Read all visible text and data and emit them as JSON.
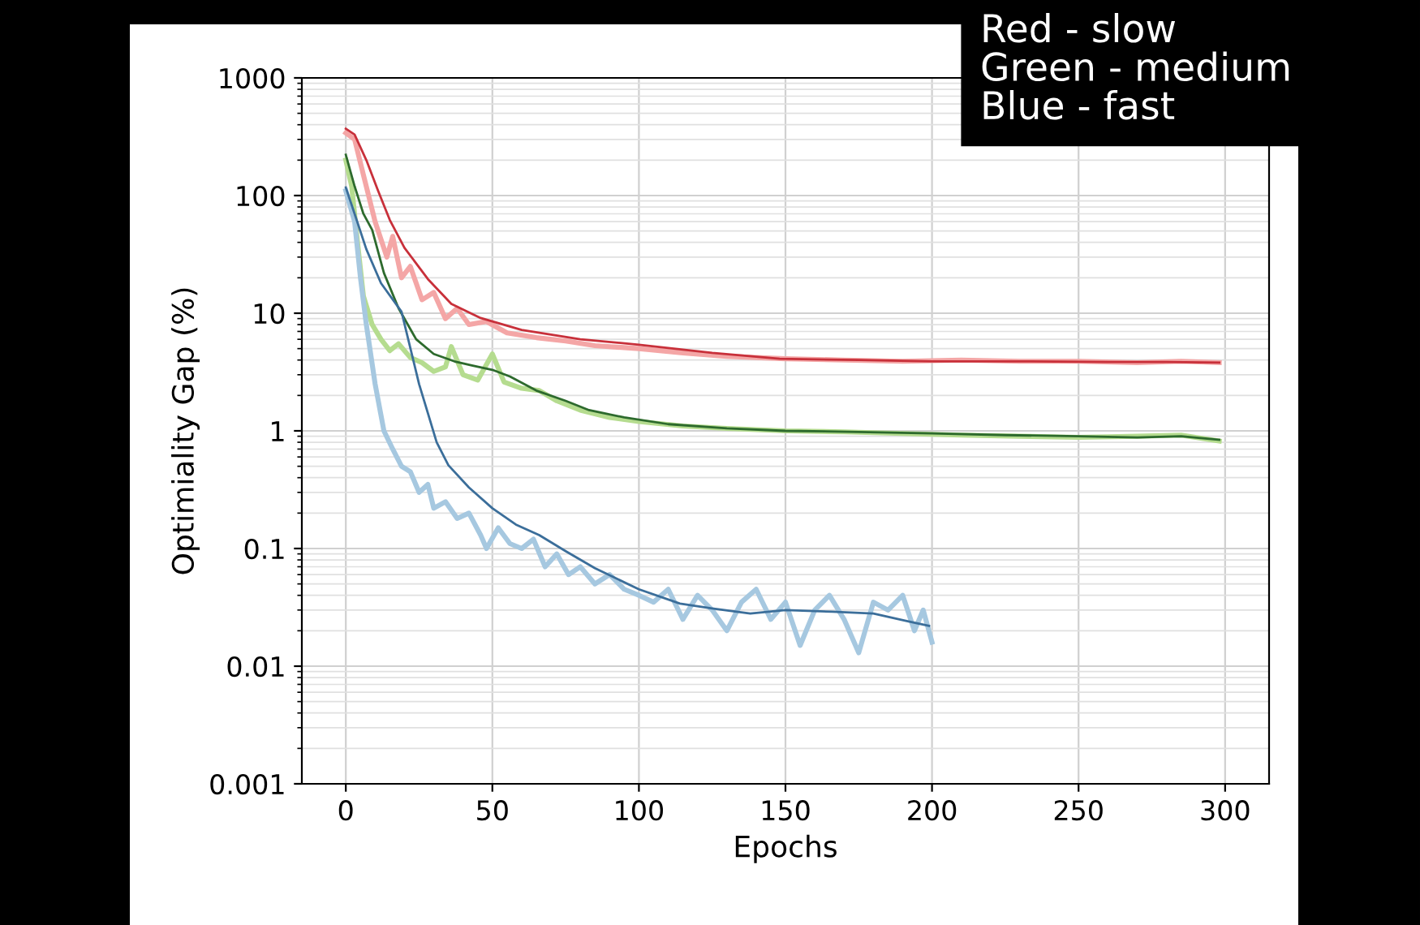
{
  "chart_data": {
    "type": "line",
    "xlabel": "Epochs",
    "ylabel": "Optimiality Gap (%)",
    "log": "y",
    "xlim": [
      -15,
      315
    ],
    "xticks": [
      0,
      50,
      100,
      150,
      200,
      250,
      300
    ],
    "ylim": [
      0.001,
      1000
    ],
    "yticks": [
      0.001,
      0.01,
      0.1,
      1,
      10,
      100,
      1000
    ],
    "grid": true,
    "marker": "none",
    "line_style": "solid",
    "annotations": [
      "Red - slow\nGreen - medium\nBlue - fast"
    ],
    "series": [
      {
        "color": "#f4a6a6",
        "x": [
          0,
          3,
          6,
          10,
          14,
          16,
          19,
          22,
          26,
          30,
          34,
          38,
          42,
          48,
          55,
          65,
          75,
          85,
          100,
          115,
          130,
          150,
          170,
          190,
          210,
          230,
          250,
          270,
          285,
          298
        ],
        "values": [
          340,
          300,
          150,
          60,
          30,
          45,
          20,
          25,
          13,
          15,
          9,
          11,
          8,
          8.5,
          6.8,
          6.2,
          5.8,
          5.3,
          5.0,
          4.6,
          4.3,
          4.1,
          4.0,
          3.9,
          4.0,
          3.9,
          3.9,
          3.8,
          3.9,
          3.8
        ]
      },
      {
        "color": "#b5dc8f",
        "x": [
          0,
          2,
          4,
          6,
          9,
          12,
          15,
          18,
          22,
          26,
          30,
          34,
          36,
          40,
          45,
          50,
          54,
          60,
          66,
          72,
          80,
          90,
          100,
          115,
          130,
          150,
          170,
          190,
          210,
          230,
          250,
          270,
          285,
          298
        ],
        "values": [
          200,
          120,
          40,
          14,
          8,
          6,
          4.8,
          5.5,
          4.2,
          3.8,
          3.2,
          3.5,
          5.2,
          3.0,
          2.7,
          4.5,
          2.6,
          2.3,
          2.2,
          1.8,
          1.5,
          1.3,
          1.2,
          1.1,
          1.05,
          1.0,
          0.98,
          0.95,
          0.92,
          0.9,
          0.88,
          0.9,
          0.92,
          0.82
        ]
      },
      {
        "color": "#a6c8e0",
        "x": [
          0,
          3,
          5,
          7,
          10,
          13,
          16,
          19,
          22,
          25,
          28,
          30,
          34,
          38,
          42,
          46,
          48,
          52,
          56,
          60,
          64,
          68,
          72,
          76,
          80,
          85,
          90,
          95,
          100,
          105,
          110,
          115,
          120,
          125,
          130,
          135,
          140,
          145,
          150,
          155,
          160,
          165,
          170,
          175,
          180,
          185,
          190,
          194,
          197,
          200
        ],
        "values": [
          110,
          60,
          20,
          8,
          2.5,
          1.0,
          0.7,
          0.5,
          0.45,
          0.3,
          0.35,
          0.22,
          0.25,
          0.18,
          0.2,
          0.13,
          0.1,
          0.15,
          0.11,
          0.1,
          0.12,
          0.07,
          0.09,
          0.06,
          0.07,
          0.05,
          0.06,
          0.045,
          0.04,
          0.035,
          0.045,
          0.025,
          0.04,
          0.03,
          0.02,
          0.035,
          0.045,
          0.025,
          0.035,
          0.015,
          0.03,
          0.04,
          0.025,
          0.013,
          0.035,
          0.03,
          0.04,
          0.02,
          0.03,
          0.016
        ]
      },
      {
        "color": "#c8303a",
        "x": [
          0,
          3,
          7,
          11,
          15,
          20,
          28,
          36,
          46,
          60,
          80,
          100,
          125,
          148,
          175,
          200,
          230,
          260,
          280,
          298
        ],
        "values": [
          370,
          330,
          200,
          110,
          62,
          36,
          19.5,
          12,
          9.1,
          7.2,
          6.0,
          5.4,
          4.6,
          4.1,
          4.0,
          3.9,
          3.9,
          3.85,
          3.85,
          3.8
        ]
      },
      {
        "color": "#2d6a2d",
        "x": [
          0,
          3,
          6,
          9,
          13,
          18,
          24,
          30,
          37,
          43,
          50,
          56,
          65,
          75,
          83,
          95,
          110,
          130,
          150,
          175,
          200,
          225,
          250,
          270,
          285,
          298
        ],
        "values": [
          222,
          120,
          70,
          51,
          22,
          11,
          6.0,
          4.5,
          3.9,
          3.6,
          3.3,
          2.9,
          2.2,
          1.8,
          1.5,
          1.3,
          1.14,
          1.05,
          1.0,
          0.98,
          0.95,
          0.92,
          0.9,
          0.88,
          0.9,
          0.84
        ]
      },
      {
        "color": "#3b6e9a",
        "x": [
          0,
          3,
          7,
          12,
          19,
          25,
          31,
          35,
          42,
          50,
          58,
          66,
          75,
          85,
          100,
          114,
          125,
          138,
          150,
          166,
          180,
          192,
          199
        ],
        "values": [
          117,
          70,
          35,
          18,
          10.3,
          2.5,
          0.8,
          0.51,
          0.33,
          0.22,
          0.16,
          0.13,
          0.095,
          0.068,
          0.045,
          0.034,
          0.031,
          0.028,
          0.03,
          0.029,
          0.028,
          0.024,
          0.022
        ]
      }
    ]
  }
}
